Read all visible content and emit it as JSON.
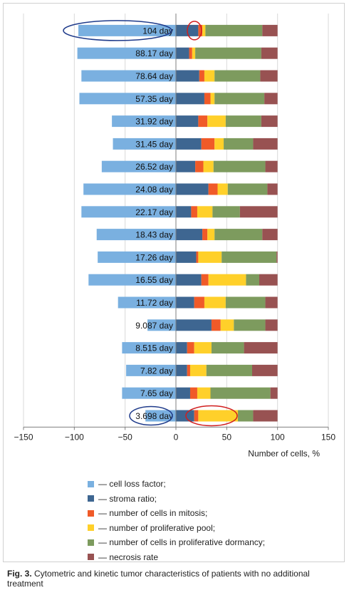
{
  "chart_data": {
    "type": "bar",
    "orientation": "horizontal",
    "stacked": true,
    "categories": [
      "104 day",
      "88.17 day",
      "78.64 day",
      "57.35 day",
      "31.92 day",
      "31.45 day",
      "26.52 day",
      "24.08 day",
      "22.17 day",
      "18.43 day",
      "17.26 day",
      "16.55 day",
      "11.72 day",
      "9.087 day",
      "8.515 day",
      "7.82 day",
      "7.65 day",
      "3.698 day"
    ],
    "xlim": [
      -150,
      150
    ],
    "xticks": [
      "−150",
      "−100",
      "−50",
      "0",
      "50",
      "100",
      "150"
    ],
    "xlabel": "Number of cells, %",
    "grid": "vertical",
    "legend_position": "bottom",
    "series": [
      {
        "name": "— cell loss factor;",
        "color": "#7ab0e0",
        "values": [
          -96,
          -97,
          -93,
          -95,
          -63,
          -62,
          -73,
          -91,
          -93,
          -78,
          -77,
          -86,
          -57,
          -28,
          -53,
          -49,
          -53,
          -30
        ]
      },
      {
        "name": "— stroma ratio;",
        "color": "#3e6691",
        "values": [
          22,
          13,
          23,
          28,
          22,
          25,
          19,
          32,
          15,
          26,
          20,
          25,
          18,
          35,
          11,
          11,
          14,
          18
        ]
      },
      {
        "name": "— number of cells in mitosis;",
        "color": "#f05a28",
        "values": [
          4,
          3,
          5,
          6,
          9,
          13,
          8,
          9,
          6,
          5,
          2,
          7,
          10,
          9,
          7,
          3,
          7,
          4
        ]
      },
      {
        "name": "— number of proliferative pool;",
        "color": "#ffd02a",
        "values": [
          3,
          3,
          10,
          4,
          18,
          9,
          10,
          10,
          15,
          7,
          23,
          37,
          21,
          13,
          17,
          16,
          13,
          39
        ]
      },
      {
        "name": "— number of cells in proliferative dormancy;",
        "color": "#7d9b5e",
        "values": [
          56,
          65,
          45,
          49,
          35,
          29,
          51,
          39,
          27,
          47,
          54,
          13,
          39,
          31,
          32,
          45,
          59,
          15
        ]
      },
      {
        "name": "— necrosis rate",
        "color": "#985252",
        "values": [
          15,
          16,
          17,
          13,
          16,
          24,
          12,
          10,
          37,
          15,
          1,
          18,
          12,
          12,
          33,
          25,
          7,
          24
        ]
      }
    ]
  },
  "caption": {
    "label": "Fig. 3.",
    "text": " Cytometric and kinetic tumor characteristics of patients with no additional treatment"
  }
}
